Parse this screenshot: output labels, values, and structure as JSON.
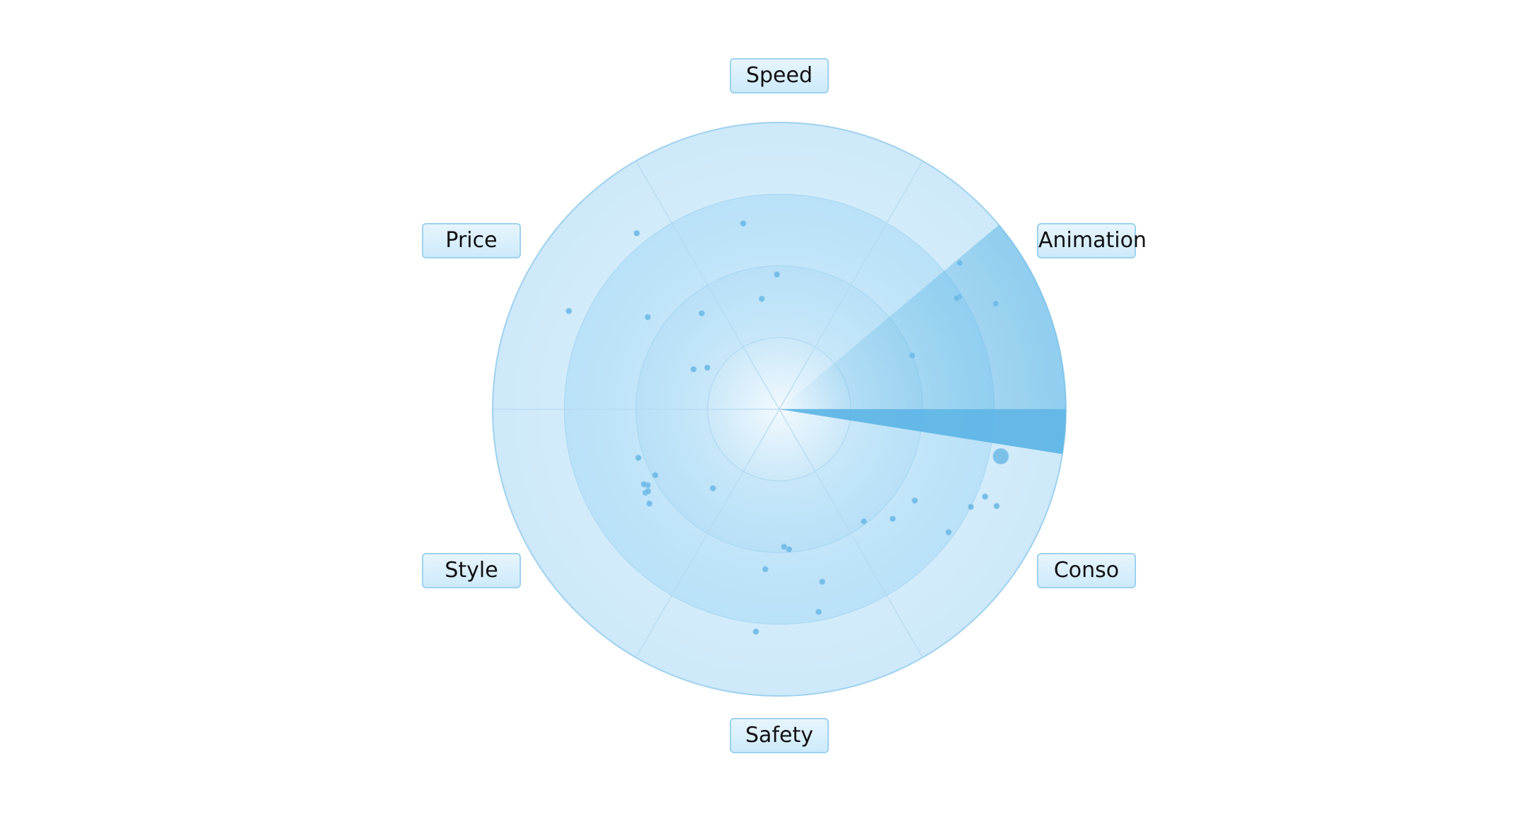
{
  "radar": {
    "axes": [
      {
        "label": "Speed"
      },
      {
        "label": "Animation"
      },
      {
        "label": "Conso"
      },
      {
        "label": "Safety"
      },
      {
        "label": "Style"
      },
      {
        "label": "Price"
      }
    ],
    "rings": 4,
    "sweep_angle_deg": 9,
    "colors": {
      "ring_outer": "#d3ecfb",
      "ring_inner": "#e8f5fd",
      "ring_stroke": "#99cdec",
      "spoke": "#b7daf0",
      "dot": "#6cb9e6",
      "sweep": "#5ab4e4",
      "label_border": "#9dd2ee",
      "label_fill": "#d5edfb"
    }
  },
  "chart_data": {
    "type": "scatter",
    "coordinate_system": "polar",
    "angle_unit": "degrees clockwise from Speed axis",
    "radius_range": [
      0,
      1
    ],
    "points": [
      {
        "angle": 349,
        "r": 0.66,
        "size": 1
      },
      {
        "angle": 359,
        "r": 0.47,
        "size": 1
      },
      {
        "angle": 351,
        "r": 0.39,
        "size": 1
      },
      {
        "angle": 321,
        "r": 0.79,
        "size": 1
      },
      {
        "angle": 305,
        "r": 0.56,
        "size": 1
      },
      {
        "angle": 321,
        "r": 0.43,
        "size": 1
      },
      {
        "angle": 295,
        "r": 0.81,
        "size": 1
      },
      {
        "angle": 300,
        "r": 0.29,
        "size": 1
      },
      {
        "angle": 295,
        "r": 0.33,
        "size": 1
      },
      {
        "angle": 51,
        "r": 0.81,
        "size": 1
      },
      {
        "angle": 58,
        "r": 0.74,
        "size": 1
      },
      {
        "angle": 58,
        "r": 0.73,
        "size": 1
      },
      {
        "angle": 64,
        "r": 0.84,
        "size": 1
      },
      {
        "angle": 68,
        "r": 0.5,
        "size": 1
      },
      {
        "angle": 102,
        "r": 0.79,
        "size": 2
      },
      {
        "angle": 114,
        "r": 0.83,
        "size": 1
      },
      {
        "angle": 113,
        "r": 0.78,
        "size": 1
      },
      {
        "angle": 117,
        "r": 0.75,
        "size": 1
      },
      {
        "angle": 126,
        "r": 0.73,
        "size": 1
      },
      {
        "angle": 124,
        "r": 0.57,
        "size": 1
      },
      {
        "angle": 134,
        "r": 0.55,
        "size": 1
      },
      {
        "angle": 143,
        "r": 0.49,
        "size": 1
      },
      {
        "angle": 176,
        "r": 0.49,
        "size": 1
      },
      {
        "angle": 178,
        "r": 0.48,
        "size": 1
      },
      {
        "angle": 185,
        "r": 0.56,
        "size": 1
      },
      {
        "angle": 169,
        "r": 0.72,
        "size": 1
      },
      {
        "angle": 166,
        "r": 0.62,
        "size": 1
      },
      {
        "angle": 186,
        "r": 0.78,
        "size": 1
      },
      {
        "angle": 242,
        "r": 0.49,
        "size": 1
      },
      {
        "angle": 220,
        "r": 0.36,
        "size": 1
      },
      {
        "angle": 251,
        "r": 0.52,
        "size": 1
      },
      {
        "angle": 240,
        "r": 0.53,
        "size": 1
      },
      {
        "angle": 241,
        "r": 0.54,
        "size": 1
      },
      {
        "angle": 234,
        "r": 0.56,
        "size": 1
      },
      {
        "angle": 238,
        "r": 0.55,
        "size": 1
      },
      {
        "angle": 238,
        "r": 0.54,
        "size": 1
      }
    ]
  }
}
